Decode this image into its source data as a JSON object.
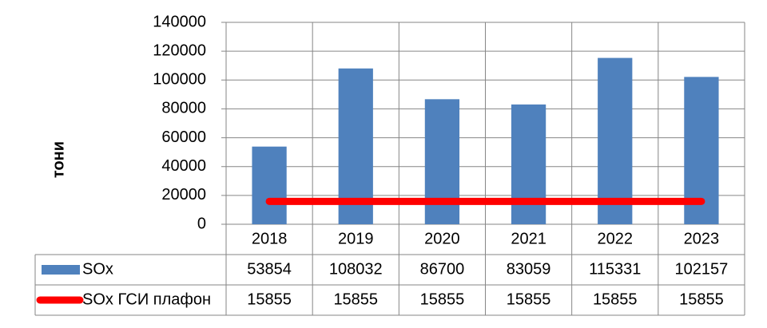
{
  "chart_data": {
    "type": "bar",
    "y_label": "тони",
    "categories": [
      "2018",
      "2019",
      "2020",
      "2021",
      "2022",
      "2023"
    ],
    "series": [
      {
        "name": "SOx",
        "type": "bar",
        "color": "#4f81bd",
        "values": [
          53854,
          108032,
          86700,
          83059,
          115331,
          102157
        ]
      },
      {
        "name": "SOx ГСИ плафон",
        "type": "line",
        "color": "#ff0000",
        "values": [
          15855,
          15855,
          15855,
          15855,
          15855,
          15855
        ]
      }
    ],
    "ylim": [
      0,
      140000
    ],
    "yticks": [
      0,
      20000,
      40000,
      60000,
      80000,
      100000,
      120000,
      140000
    ],
    "grid": true,
    "data_table": true
  }
}
